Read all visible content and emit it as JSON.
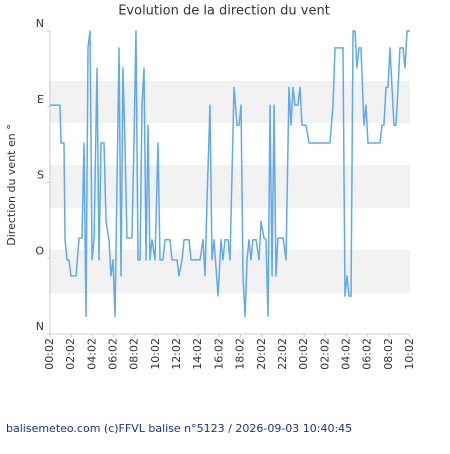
{
  "chart_data": {
    "type": "line",
    "title": "Evolution de la direction du vent",
    "y_label": "Direction du vent en °",
    "footer": "balisemeteo.com (c)FFVL balise n°5123 / 2026-09-03 10:40:45",
    "y_inverted": true,
    "ylim": [
      0,
      360
    ],
    "yticks": [
      {
        "value": 0,
        "label": "N"
      },
      {
        "value": 90,
        "label": "E"
      },
      {
        "value": 180,
        "label": "S"
      },
      {
        "value": 270,
        "label": "O"
      },
      {
        "value": 360,
        "label": "N"
      }
    ],
    "xlim": [
      0,
      34
    ],
    "xticks": [
      {
        "value": 0,
        "label": "00:02"
      },
      {
        "value": 2,
        "label": "02:02"
      },
      {
        "value": 4,
        "label": "04:02"
      },
      {
        "value": 6,
        "label": "06:02"
      },
      {
        "value": 8,
        "label": "08:02"
      },
      {
        "value": 10,
        "label": "10:02"
      },
      {
        "value": 12,
        "label": "12:02"
      },
      {
        "value": 14,
        "label": "14:02"
      },
      {
        "value": 16,
        "label": "16:02"
      },
      {
        "value": 18,
        "label": "18:02"
      },
      {
        "value": 20,
        "label": "20:02"
      },
      {
        "value": 22,
        "label": "22:02"
      },
      {
        "value": 24,
        "label": "00:02"
      },
      {
        "value": 26,
        "label": "02:02"
      },
      {
        "value": 28,
        "label": "04:02"
      },
      {
        "value": 30,
        "label": "06:02"
      },
      {
        "value": 32,
        "label": "08:02"
      },
      {
        "value": 34,
        "label": "10:02"
      }
    ],
    "color": "#62a9ec",
    "x": [
      0,
      0.94,
      1.04,
      1.32,
      1.42,
      1.61,
      1.79,
      1.98,
      2.46,
      2.74,
      3.02,
      3.21,
      3.4,
      3.59,
      3.78,
      3.97,
      4.16,
      4.44,
      4.63,
      4.82,
      5.1,
      5.29,
      5.57,
      5.76,
      5.95,
      6.14,
      6.52,
      6.71,
      6.89,
      7.08,
      7.27,
      7.74,
      7.93,
      8.12,
      8.31,
      8.5,
      8.69,
      8.88,
      9.07,
      9.26,
      9.44,
      9.63,
      9.92,
      10.2,
      10.39,
      10.67,
      10.86,
      11.33,
      11.52,
      12,
      12.18,
      12.47,
      12.66,
      13.13,
      13.32,
      14.17,
      14.45,
      14.64,
      14.83,
      15.11,
      15.3,
      15.49,
      15.87,
      16.15,
      16.34,
      16.53,
      16.81,
      17,
      17.38,
      17.66,
      17.85,
      18.04,
      18.23,
      18.42,
      18.61,
      18.79,
      18.98,
      19.17,
      19.46,
      19.74,
      19.93,
      20.21,
      20.4,
      20.59,
      20.78,
      20.97,
      21.16,
      21.34,
      21.53,
      22.01,
      22.29,
      22.57,
      22.76,
      22.95,
      23.14,
      23.42,
      23.61,
      23.8,
      24.18,
      24.46,
      24.84,
      26.44,
      26.73,
      26.92,
      27.67,
      27.86,
      28.05,
      28.24,
      28.43,
      28.62,
      28.81,
      28.99,
      29.18,
      29.37,
      29.65,
      29.84,
      30.03,
      30.41,
      31.17,
      31.35,
      31.54,
      31.73,
      31.92,
      32.11,
      32.3,
      32.49,
      32.68,
      32.87,
      33.05,
      33.34,
      33.53,
      33.72,
      34
    ],
    "values": [
      88,
      88,
      133,
      133,
      248,
      272,
      272,
      291,
      291,
      246,
      246,
      133,
      339,
      20,
      0,
      272,
      248,
      44,
      272,
      133,
      133,
      226,
      248,
      291,
      272,
      339,
      20,
      291,
      44,
      133,
      246,
      246,
      133,
      0,
      272,
      272,
      88,
      44,
      272,
      112,
      272,
      248,
      272,
      133,
      272,
      272,
      248,
      248,
      272,
      272,
      291,
      272,
      248,
      248,
      272,
      272,
      248,
      291,
      201,
      88,
      272,
      248,
      315,
      248,
      272,
      248,
      248,
      272,
      67,
      112,
      112,
      88,
      291,
      339,
      272,
      248,
      272,
      248,
      248,
      272,
      226,
      246,
      248,
      339,
      88,
      291,
      88,
      291,
      246,
      246,
      272,
      67,
      112,
      67,
      88,
      88,
      67,
      112,
      112,
      133,
      133,
      133,
      88,
      20,
      20,
      315,
      291,
      315,
      315,
      0,
      0,
      44,
      20,
      20,
      112,
      88,
      133,
      133,
      133,
      112,
      112,
      67,
      67,
      20,
      67,
      112,
      112,
      67,
      20,
      20,
      44,
      0,
      0
    ]
  }
}
